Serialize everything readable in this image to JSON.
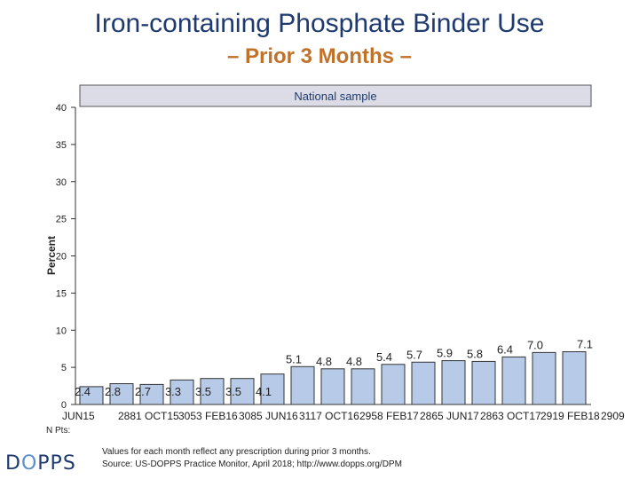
{
  "title": "Iron-containing Phosphate Binder Use",
  "subtitle": "– Prior 3 Months –",
  "footnote": {
    "line1": "Values for each month reflect any prescription during prior 3 months.",
    "line2": "Source: US-DOPPS Practice Monitor, April 2018; http://www.dopps.org/DPM"
  },
  "logo": {
    "prefix": "D",
    "middle": "O",
    "suffix": "PPS"
  },
  "colors": {
    "bar_fill": "#b7cbe8",
    "bar_stroke": "#333333",
    "panel_fill": "#dcdce6",
    "title": "#1f3a6e",
    "subtitle": "#c0722a"
  },
  "chart_data": {
    "type": "bar",
    "panel_title": "National sample",
    "ylabel": "Percent",
    "ylim": [
      0,
      40
    ],
    "yticks": [
      0,
      5,
      10,
      15,
      20,
      25,
      30,
      35,
      40
    ],
    "npts_label": "N Pts:",
    "categories": [
      "",
      "",
      "",
      "",
      "",
      "",
      "",
      "",
      "",
      "",
      "",
      "",
      "",
      "",
      "",
      "",
      ""
    ],
    "values": [
      2.4,
      2.8,
      2.7,
      3.3,
      3.5,
      3.5,
      4.1,
      5.1,
      4.8,
      4.8,
      5.4,
      5.7,
      5.9,
      5.8,
      6.4,
      7.0,
      7.1
    ],
    "value_labels": [
      "2.4",
      "2.8",
      "2.7",
      "3.3",
      "3.5",
      "3.5",
      "4.1",
      "5.1",
      "4.8",
      "4.8",
      "5.4",
      "5.7",
      "5.9",
      "5.8",
      "6.4",
      "7.0",
      "7.1"
    ],
    "x_labels": [
      "JUN15",
      "2881 OCT15",
      "3053 FEB16",
      "3085 JUN16",
      "3117 OCT16",
      "2958 FEB17",
      "2865 JUN17",
      "2863 OCT17",
      "2919 FEB18",
      "2909"
    ]
  }
}
